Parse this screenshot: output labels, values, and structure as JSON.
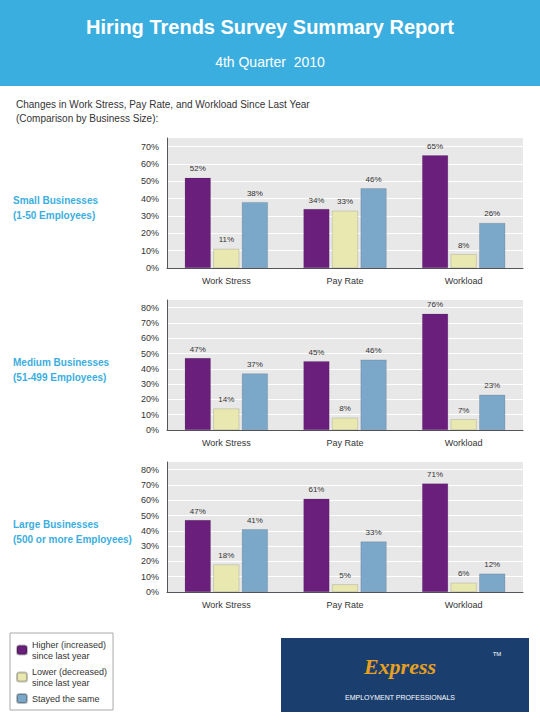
{
  "title": "Hiring Trends Survey Summary Report",
  "subtitle": "4th Quarter  2010",
  "annotations": [
    "Changes in Work Stress, Pay Rate, and Workload Since Last Year\n(Comparison by Business Size):",
    "Express",
    "EMPLOYMENT PROFESSIONALS",
    "TM"
  ],
  "chart_data": [
    {
      "type": "bar",
      "title": "Small Businesses\n(1-50 Employees)",
      "categories": [
        "Work Stress",
        "Pay Rate",
        "Workload"
      ],
      "series": [
        {
          "name": "Higher (increased)\nsince last year",
          "color": "#6B1F7C",
          "values": [
            52,
            34,
            65
          ],
          "value_labels": [
            "52%",
            "34%",
            "65%"
          ]
        },
        {
          "name": "Lower (decreased)\nsince last year",
          "color": "#E8E8B0",
          "values": [
            11,
            33,
            8
          ],
          "value_labels": [
            "11%",
            "33%",
            "8%"
          ]
        },
        {
          "name": "Stayed the same",
          "color": "#7BA7C9",
          "values": [
            38,
            46,
            26
          ],
          "value_labels": [
            "38%",
            "46%",
            "26%"
          ]
        }
      ],
      "ylim": [
        0,
        75
      ],
      "yticks": [
        {
          "value": 0,
          "label": "0%"
        },
        {
          "value": 10,
          "label": "10%"
        },
        {
          "value": 20,
          "label": "20%"
        },
        {
          "value": 30,
          "label": "30%"
        },
        {
          "value": 40,
          "label": "40%"
        },
        {
          "value": 50,
          "label": "50%"
        },
        {
          "value": 60,
          "label": "60%"
        },
        {
          "value": 70,
          "label": "70%"
        }
      ],
      "grid": true,
      "data_labels": true
    },
    {
      "type": "bar",
      "title": "Medium Businesses\n(51-499 Employees)",
      "categories": [
        "Work Stress",
        "Pay Rate",
        "Workload"
      ],
      "series": [
        {
          "name": "Higher (increased)\nsince last year",
          "color": "#6B1F7C",
          "values": [
            47,
            45,
            76
          ],
          "value_labels": [
            "47%",
            "45%",
            "76%"
          ]
        },
        {
          "name": "Lower (decreased)\nsince last year",
          "color": "#E8E8B0",
          "values": [
            14,
            8,
            7
          ],
          "value_labels": [
            "14%",
            "8%",
            "7%"
          ]
        },
        {
          "name": "Stayed the same",
          "color": "#7BA7C9",
          "values": [
            37,
            46,
            23
          ],
          "value_labels": [
            "37%",
            "46%",
            "23%"
          ]
        }
      ],
      "ylim": [
        0,
        85
      ],
      "yticks": [
        {
          "value": 0,
          "label": "0%"
        },
        {
          "value": 10,
          "label": "10%"
        },
        {
          "value": 20,
          "label": "20%"
        },
        {
          "value": 30,
          "label": "30%"
        },
        {
          "value": 40,
          "label": "40%"
        },
        {
          "value": 50,
          "label": "50%"
        },
        {
          "value": 60,
          "label": "60%"
        },
        {
          "value": 70,
          "label": "70%"
        },
        {
          "value": 80,
          "label": "80%"
        }
      ],
      "grid": true,
      "data_labels": true
    },
    {
      "type": "bar",
      "title": "Large Businesses\n(500 or more Employees)",
      "categories": [
        "Work Stress",
        "Pay Rate",
        "Workload"
      ],
      "series": [
        {
          "name": "Higher (increased)\nsince last year",
          "color": "#6B1F7C",
          "values": [
            47,
            61,
            71
          ],
          "value_labels": [
            "47%",
            "61%",
            "71%"
          ]
        },
        {
          "name": "Lower (decreased)\nsince last year",
          "color": "#E8E8B0",
          "values": [
            18,
            5,
            6
          ],
          "value_labels": [
            "18%",
            "5%",
            "6%"
          ]
        },
        {
          "name": "Stayed the same",
          "color": "#7BA7C9",
          "values": [
            41,
            33,
            12
          ],
          "value_labels": [
            "41%",
            "33%",
            "12%"
          ]
        }
      ],
      "ylim": [
        0,
        85
      ],
      "yticks": [
        {
          "value": 0,
          "label": "0%"
        },
        {
          "value": 10,
          "label": "10%"
        },
        {
          "value": 20,
          "label": "20%"
        },
        {
          "value": 30,
          "label": "30%"
        },
        {
          "value": 40,
          "label": "40%"
        },
        {
          "value": 50,
          "label": "50%"
        },
        {
          "value": 60,
          "label": "60%"
        },
        {
          "value": 70,
          "label": "70%"
        },
        {
          "value": 80,
          "label": "80%"
        }
      ],
      "grid": true,
      "data_labels": true,
      "legend": "lower left"
    }
  ]
}
